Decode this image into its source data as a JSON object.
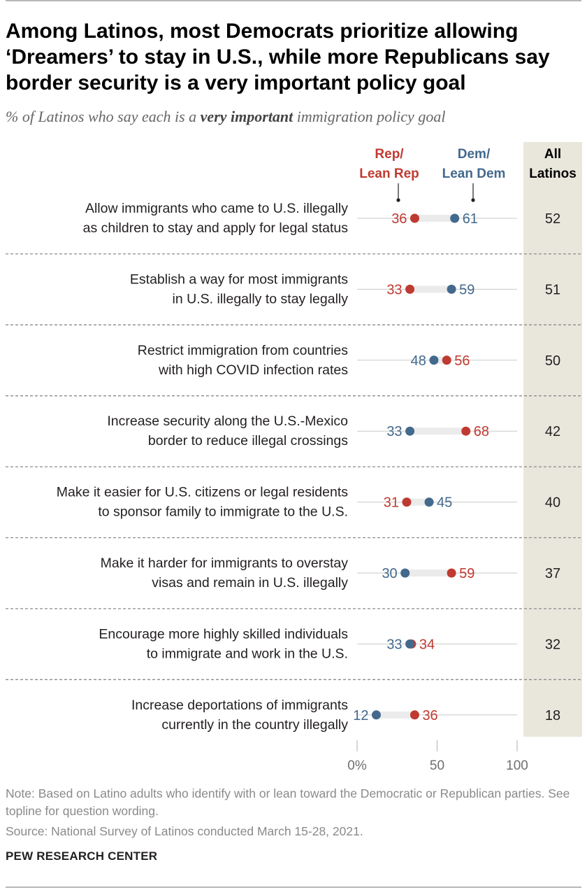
{
  "header": {
    "title": "Among Latinos, most Democrats prioritize allowing ‘Dreamers’ to stay in U.S., while more Republicans say border security is a very important policy goal",
    "subtitle_pre": "% of Latinos who say each is a ",
    "subtitle_em": "very important",
    "subtitle_post": " immigration policy goal"
  },
  "footer": {
    "note": "Note: Based on Latino adults who identify with or lean toward the Democratic or Republican parties. See topline for question wording.",
    "source": "Source: National Survey of Latinos conducted March 15-28, 2021.",
    "brand": "PEW RESEARCH CENTER"
  },
  "colors": {
    "rep": "#bf3a30",
    "dem": "#43698d",
    "all_col_bg": "#e9e7dc",
    "bar": "#ebebeb",
    "track": "#c9c9c9"
  },
  "chart_data": {
    "type": "dot",
    "legend": {
      "rep": [
        "Rep/",
        "Lean Rep"
      ],
      "dem": [
        "Dem/",
        "Lean Dem"
      ],
      "all": [
        "All",
        "Latinos"
      ]
    },
    "x_ticks": [
      "0%",
      "50",
      "100"
    ],
    "xlim": [
      0,
      100
    ],
    "categories": [
      [
        "Allow immigrants who came to U.S. illegally",
        "as children to stay and apply for legal status"
      ],
      [
        "Establish a way for most immigrants",
        "in U.S. illegally to stay legally"
      ],
      [
        "Restrict immigration from countries",
        "with high COVID infection rates"
      ],
      [
        "Increase security along the U.S.-Mexico",
        "border to reduce illegal crossings"
      ],
      [
        "Make it easier for U.S. citizens or legal residents",
        "to sponsor family to immigrate to the U.S."
      ],
      [
        "Make it harder for immigrants to overstay",
        "visas and remain in U.S. illegally"
      ],
      [
        "Encourage more highly skilled individuals",
        "to immigrate and work in the U.S."
      ],
      [
        "Increase deportations of immigrants",
        "currently in the country illegally"
      ]
    ],
    "series": [
      {
        "name": "Rep/Lean Rep",
        "values": [
          36,
          33,
          56,
          68,
          31,
          59,
          34,
          36
        ]
      },
      {
        "name": "Dem/Lean Dem",
        "values": [
          61,
          59,
          48,
          33,
          45,
          30,
          33,
          12
        ]
      },
      {
        "name": "All Latinos",
        "values": [
          52,
          51,
          50,
          42,
          40,
          37,
          32,
          18
        ]
      }
    ]
  }
}
